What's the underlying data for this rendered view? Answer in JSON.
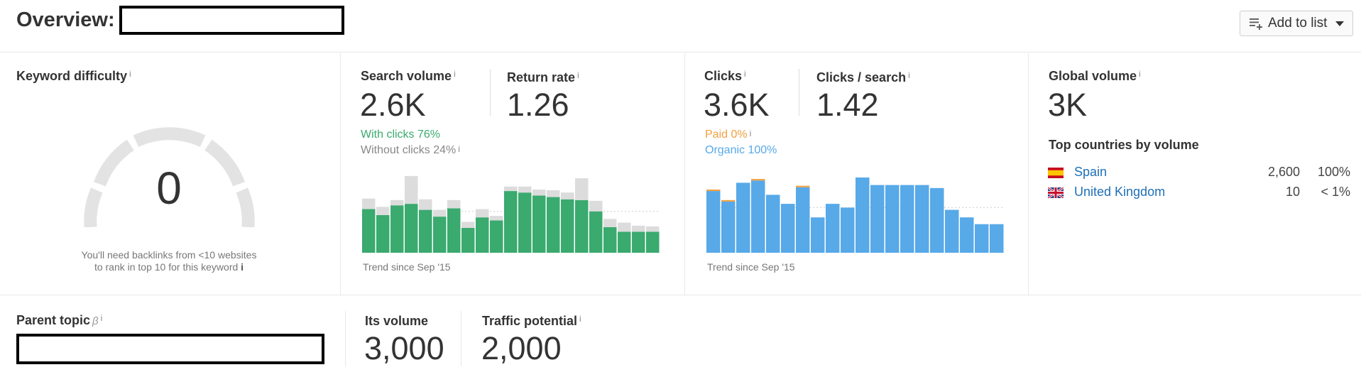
{
  "header": {
    "title": "Overview:",
    "add_to_list": "Add to list",
    "icons": {
      "list": "playlist-add-icon",
      "caret": "caret-down-icon"
    }
  },
  "keyword_difficulty": {
    "label": "Keyword difficulty",
    "info": "i",
    "value": "0",
    "note_line1": "You'll need backlinks from <10 websites",
    "note_line2": "to rank in top 10 for this keyword",
    "note_info": "i",
    "score": 0
  },
  "search_volume": {
    "label": "Search volume",
    "info": "i",
    "value": "2.6K",
    "return_rate_label": "Return rate",
    "return_rate_value": "1.26",
    "with_clicks": "With clicks 76%",
    "without_clicks": "Without clicks 24%",
    "trend": "Trend since Sep '15",
    "colors": {
      "with": "#3aaa6f",
      "without": "#dcdcdc"
    }
  },
  "clicks": {
    "label": "Clicks",
    "info": "i",
    "value": "3.6K",
    "per_search_label": "Clicks / search",
    "per_search_value": "1.42",
    "paid": "Paid 0%",
    "organic": "Organic 100%",
    "trend": "Trend since Sep '15",
    "colors": {
      "organic": "#57a9e8",
      "paid": "#f0a040"
    }
  },
  "global_volume": {
    "label": "Global volume",
    "info": "i",
    "value": "3K",
    "top_countries_label": "Top countries by volume",
    "countries": [
      {
        "name": "Spain",
        "volume": "2,600",
        "share": "100%",
        "flag": "spain-flag-icon"
      },
      {
        "name": "United Kingdom",
        "volume": "10",
        "share": "< 1%",
        "flag": "uk-flag-icon"
      }
    ]
  },
  "parent_topic": {
    "label": "Parent topic",
    "beta": "β",
    "info": "i",
    "its_volume_label": "Its volume",
    "its_volume_value": "3,000",
    "traffic_potential_label": "Traffic potential",
    "traffic_potential_value": "2,000"
  },
  "chart_data": [
    {
      "type": "bar",
      "name": "search-volume-trend",
      "series": [
        {
          "name": "With clicks",
          "values": [
            0.58,
            0.5,
            0.63,
            0.65,
            0.57,
            0.48,
            0.59,
            0.33,
            0.47,
            0.43,
            0.82,
            0.8,
            0.76,
            0.74,
            0.71,
            0.7,
            0.55,
            0.34,
            0.28,
            0.28,
            0.28
          ]
        },
        {
          "name": "Without clicks",
          "values": [
            0.14,
            0.11,
            0.07,
            0.37,
            0.14,
            0.09,
            0.11,
            0.08,
            0.11,
            0.06,
            0.06,
            0.08,
            0.08,
            0.09,
            0.09,
            0.29,
            0.14,
            0.11,
            0.12,
            0.08,
            0.07
          ]
        }
      ]
    },
    {
      "type": "bar",
      "name": "clicks-trend",
      "series": [
        {
          "name": "Organic",
          "values": [
            0.82,
            0.68,
            0.93,
            0.96,
            0.77,
            0.65,
            0.87,
            0.47,
            0.65,
            0.6,
            1.0,
            0.9,
            0.9,
            0.9,
            0.9,
            0.86,
            0.57,
            0.47,
            0.38,
            0.38
          ]
        },
        {
          "name": "Paid",
          "values": [
            0.02,
            0.02,
            0.0,
            0.02,
            0.0,
            0.0,
            0.02,
            0.0,
            0.0,
            0.0,
            0.0,
            0.0,
            0.0,
            0.0,
            0.0,
            0.0,
            0.0,
            0.0,
            0.0,
            0.0
          ]
        }
      ]
    }
  ]
}
